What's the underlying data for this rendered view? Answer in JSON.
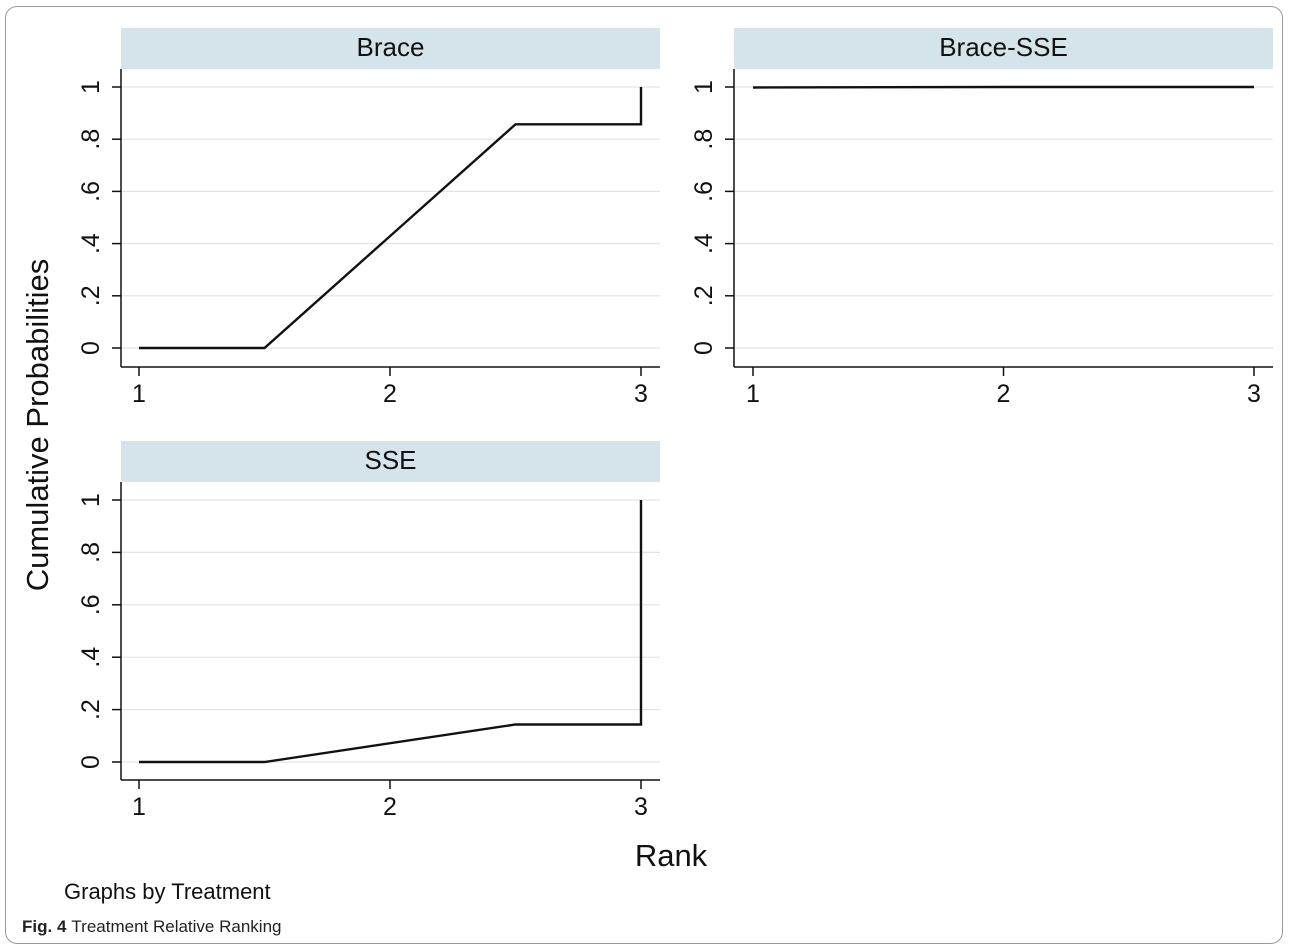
{
  "chart_data": {
    "type": "line",
    "by_label": "Graphs by Treatment",
    "ylabel": "Cumulative Probabilities",
    "xlabel": "Rank",
    "xlim": [
      1,
      3
    ],
    "ylim": [
      0,
      1
    ],
    "xticks": [
      "1",
      "2",
      "3"
    ],
    "yticks": [
      "0",
      ".2",
      ".4",
      ".6",
      ".8",
      "1"
    ],
    "grid": "horizontal",
    "line_color": "#111111",
    "panel_header_color": "#d5e3ea",
    "panels": [
      {
        "title": "Brace",
        "x": [
          1,
          1.5,
          2.5,
          3,
          3
        ],
        "y": [
          0,
          0,
          0.857,
          0.857,
          1
        ]
      },
      {
        "title": "Brace-SSE",
        "x": [
          1,
          2,
          3
        ],
        "y": [
          0.998,
          1,
          1
        ]
      },
      {
        "title": "SSE",
        "x": [
          1,
          1.5,
          2.5,
          3,
          3
        ],
        "y": [
          0,
          0,
          0.143,
          0.143,
          1
        ]
      }
    ]
  },
  "caption": {
    "label": "Fig. 4",
    "text": "Treatment Relative Ranking"
  }
}
